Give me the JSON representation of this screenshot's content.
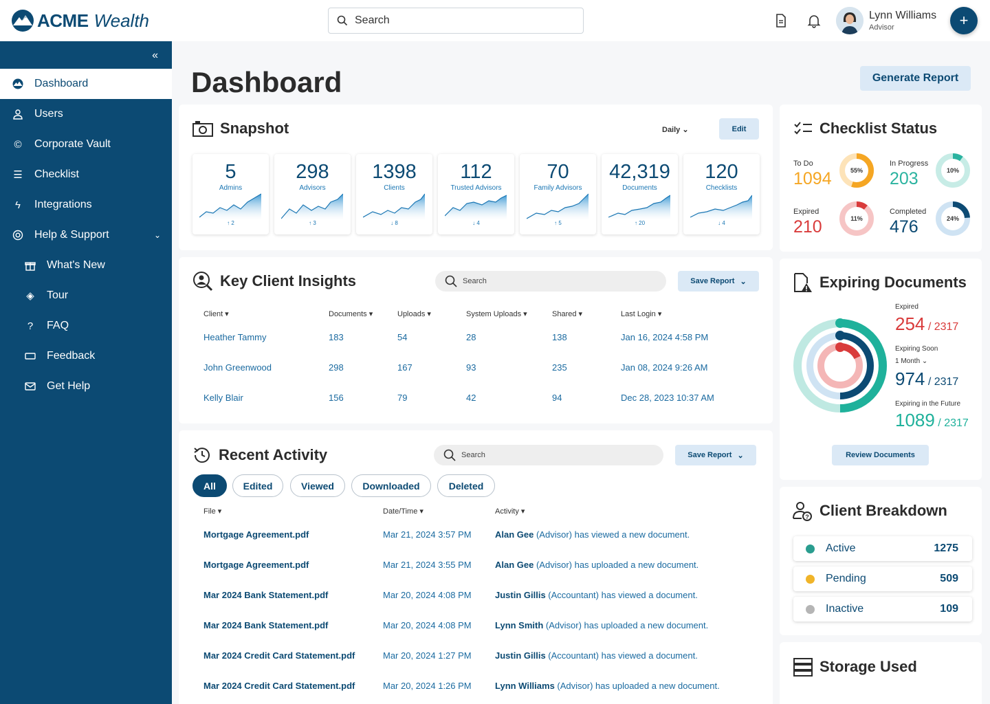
{
  "app": {
    "brand_a": "ACME",
    "brand_b": "Wealth"
  },
  "search": {
    "placeholder": "Search"
  },
  "user": {
    "name": "Lynn Williams",
    "role": "Advisor"
  },
  "sidebar": {
    "items": [
      {
        "label": "Dashboard",
        "icon": "mountain-icon"
      },
      {
        "label": "Users",
        "icon": "user-icon"
      },
      {
        "label": "Corporate Vault",
        "icon": "copyright-icon"
      },
      {
        "label": "Checklist",
        "icon": "checklist-icon"
      },
      {
        "label": "Integrations",
        "icon": "lightning-icon"
      },
      {
        "label": "Help & Support",
        "icon": "lifebuoy-icon"
      },
      {
        "label": "What's New",
        "icon": "gift-icon"
      },
      {
        "label": "Tour",
        "icon": "compass-icon"
      },
      {
        "label": "FAQ",
        "icon": "question-icon"
      },
      {
        "label": "Feedback",
        "icon": "ticket-icon"
      },
      {
        "label": "Get Help",
        "icon": "mail-icon"
      }
    ]
  },
  "page": {
    "title": "Dashboard",
    "generate_label": "Generate Report"
  },
  "snapshot": {
    "title": "Snapshot",
    "period": "Daily",
    "edit_label": "Edit",
    "tiles": [
      {
        "value": "5",
        "label": "Admins",
        "trend": "↑ 2"
      },
      {
        "value": "298",
        "label": "Advisors",
        "trend": "↑ 3"
      },
      {
        "value": "1398",
        "label": "Clients",
        "trend": "↓ 8"
      },
      {
        "value": "112",
        "label": "Trusted Advisors",
        "trend": "↓ 4"
      },
      {
        "value": "70",
        "label": "Family Advisors",
        "trend": "↑ 5"
      },
      {
        "value": "42,319",
        "label": "Documents",
        "trend": "↑ 20"
      },
      {
        "value": "120",
        "label": "Checklists",
        "trend": "↓ 4"
      }
    ]
  },
  "insights": {
    "title": "Key Client Insights",
    "search_placeholder": "Search",
    "save_label": "Save Report",
    "columns": [
      "Client",
      "Documents",
      "Uploads",
      "System Uploads",
      "Shared",
      "Last Login"
    ],
    "rows": [
      [
        "Heather Tammy",
        "183",
        "54",
        "28",
        "138",
        "Jan 16, 2024 4:58 PM"
      ],
      [
        "John Greenwood",
        "298",
        "167",
        "93",
        "235",
        "Jan 08, 2024 9:26 AM"
      ],
      [
        "Kelly Blair",
        "156",
        "79",
        "42",
        "94",
        "Dec 28, 2023 10:37 AM"
      ]
    ]
  },
  "activity": {
    "title": "Recent Activity",
    "search_placeholder": "Search",
    "save_label": "Save Report",
    "filters": [
      "All",
      "Edited",
      "Viewed",
      "Downloaded",
      "Deleted"
    ],
    "columns": [
      "File",
      "Date/Time",
      "Activity"
    ],
    "rows": [
      {
        "file": "Mortgage Agreement.pdf",
        "time": "Mar 21, 2024 3:57 PM",
        "actor": "Alan Gee",
        "rest": " (Advisor) has viewed a new document."
      },
      {
        "file": "Mortgage Agreement.pdf",
        "time": "Mar 21, 2024 3:55 PM",
        "actor": "Alan Gee",
        "rest": " (Advisor) has uploaded a new document."
      },
      {
        "file": "Mar 2024 Bank Statement.pdf",
        "time": "Mar 20, 2024 4:08 PM",
        "actor": "Justin Gillis",
        "rest": " (Accountant) has viewed a document."
      },
      {
        "file": "Mar 2024 Bank Statement.pdf",
        "time": "Mar 20, 2024 4:08 PM",
        "actor": "Lynn Smith",
        "rest": " (Advisor) has uploaded a new document."
      },
      {
        "file": "Mar 2024 Credit Card Statement.pdf",
        "time": "Mar 20, 2024 1:27 PM",
        "actor": "Justin Gillis",
        "rest": " (Accountant) has viewed a document."
      },
      {
        "file": "Mar 2024 Credit Card Statement.pdf",
        "time": "Mar 20, 2024 1:26 PM",
        "actor": "Lynn Williams",
        "rest": " (Advisor) has uploaded a new document."
      }
    ]
  },
  "checklist": {
    "title": "Checklist Status",
    "items": [
      {
        "label": "To Do",
        "value": "1094",
        "pct": "55%",
        "fraction": 0.55,
        "color": "#f5a623",
        "track": "#fde3b8"
      },
      {
        "label": "In Progress",
        "value": "203",
        "pct": "10%",
        "fraction": 0.1,
        "color": "#2bb3a0",
        "track": "#c7ece6"
      },
      {
        "label": "Expired",
        "value": "210",
        "pct": "11%",
        "fraction": 0.11,
        "color": "#d93b3b",
        "track": "#f6c5c5"
      },
      {
        "label": "Completed",
        "value": "476",
        "pct": "24%",
        "fraction": 0.24,
        "color": "#0c4a73",
        "track": "#cfe3f3"
      }
    ]
  },
  "expiring": {
    "title": "Expiring Documents",
    "expired_label": "Expired",
    "expired_value": "254",
    "expired_total": "/ 2317",
    "soon_label": "Expiring Soon",
    "soon_period": "1 Month",
    "soon_value": "974",
    "soon_total": "/ 2317",
    "future_label": "Expiring in the Future",
    "future_value": "1089",
    "future_total": "/ 2317",
    "review_label": "Review Documents"
  },
  "breakdown": {
    "title": "Client Breakdown",
    "rows": [
      {
        "label": "Active",
        "value": "1275",
        "color": "#2a9d8f"
      },
      {
        "label": "Pending",
        "value": "509",
        "color": "#f0b429"
      },
      {
        "label": "Inactive",
        "value": "109",
        "color": "#b5b5b5"
      }
    ]
  },
  "storage": {
    "title": "Storage Used"
  }
}
